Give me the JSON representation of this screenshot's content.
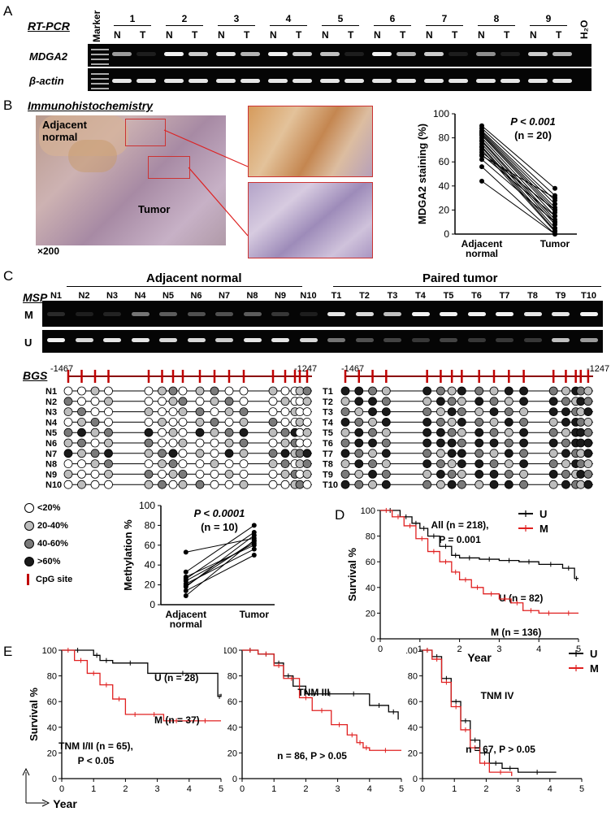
{
  "panels": {
    "A": "A",
    "B": "B",
    "C": "C",
    "D": "D",
    "E": "E"
  },
  "panelA": {
    "method": "RT-PCR",
    "marker": "Marker",
    "lanes": [
      "1",
      "2",
      "3",
      "4",
      "5",
      "6",
      "7",
      "8",
      "9"
    ],
    "n_label": "N",
    "t_label": "T",
    "h2o": "H₂O",
    "gene": "MDGA2",
    "control": "β-actin",
    "mdga2_intensity": [
      [
        0.6,
        0.1
      ],
      [
        0.95,
        0.8
      ],
      [
        0.9,
        0.7
      ],
      [
        0.95,
        0.8
      ],
      [
        0.75,
        0.1
      ],
      [
        0.95,
        0.7
      ],
      [
        0.8,
        0.1
      ],
      [
        0.55,
        0.1
      ],
      [
        0.8,
        0.7
      ]
    ]
  },
  "panelB": {
    "method": "Immunohistochemistry",
    "adjacent": "Adjacent\nnormal",
    "tumor": "Tumor",
    "mag": "×200"
  },
  "panelC": {
    "msp_label": "MSP",
    "adjacent_header": "Adjacent normal",
    "paired_header": "Paired tumor",
    "normal_lanes": [
      "N1",
      "N2",
      "N3",
      "N4",
      "N5",
      "N6",
      "N7",
      "N8",
      "N9",
      "N10"
    ],
    "tumor_lanes": [
      "T1",
      "T2",
      "T3",
      "T4",
      "T5",
      "T6",
      "T7",
      "T8",
      "T9",
      "T10"
    ],
    "row_m": "M",
    "row_u": "U",
    "bgs_label": "BGS",
    "pos_start": "-1467",
    "pos_end": "-1247",
    "legend": [
      "<20%",
      "20-40%",
      "40-60%",
      ">60%",
      "CpG site"
    ]
  },
  "chart_data": [
    {
      "id": "B-ihc",
      "type": "line",
      "ylabel": "MDGA2 staining (%)",
      "categories": [
        "Adjacent normal",
        "Tumor"
      ],
      "ylim": [
        0,
        100
      ],
      "yticks": [
        0,
        20,
        40,
        60,
        80,
        100
      ],
      "annotation": [
        "P < 0.001",
        "(n = 20)"
      ],
      "pairs": [
        [
          90,
          38
        ],
        [
          88,
          32
        ],
        [
          86,
          28
        ],
        [
          85,
          25
        ],
        [
          84,
          22
        ],
        [
          83,
          20
        ],
        [
          82,
          18
        ],
        [
          80,
          15
        ],
        [
          78,
          12
        ],
        [
          77,
          10
        ],
        [
          75,
          8
        ],
        [
          73,
          5
        ],
        [
          72,
          3
        ],
        [
          70,
          2
        ],
        [
          68,
          20
        ],
        [
          66,
          15
        ],
        [
          65,
          30
        ],
        [
          62,
          10
        ],
        [
          56,
          0
        ],
        [
          44,
          0
        ]
      ]
    },
    {
      "id": "C-methylation",
      "type": "line",
      "ylabel": "Methylation %",
      "categories": [
        "Adjacent normal",
        "Tumor"
      ],
      "ylim": [
        0,
        100
      ],
      "yticks": [
        0,
        20,
        40,
        60,
        80,
        100
      ],
      "annotation": [
        "P < 0.0001",
        "(n = 10)"
      ],
      "pairs": [
        [
          53,
          67
        ],
        [
          33,
          80
        ],
        [
          28,
          60
        ],
        [
          26,
          73
        ],
        [
          24,
          62
        ],
        [
          21,
          56
        ],
        [
          19,
          64
        ],
        [
          18,
          70
        ],
        [
          14,
          50
        ],
        [
          9,
          65
        ]
      ]
    },
    {
      "id": "D-survival",
      "type": "line",
      "xlabel": "Year",
      "ylabel": "Survival %",
      "xlim": [
        0,
        5
      ],
      "ylim": [
        0,
        100
      ],
      "xticks": [
        0,
        1,
        2,
        3,
        4,
        5
      ],
      "yticks": [
        0,
        20,
        40,
        60,
        80,
        100
      ],
      "annotation": [
        "All (n = 218),",
        "P = 0.001"
      ],
      "series": [
        {
          "name": "U",
          "color": "#000000",
          "label": "U (n = 82)",
          "x": [
            0,
            0.5,
            0.8,
            1.0,
            1.2,
            1.5,
            1.8,
            2.0,
            2.5,
            3.0,
            3.5,
            4.0,
            4.6,
            4.9,
            5.0
          ],
          "y": [
            100,
            95,
            90,
            86,
            80,
            72,
            65,
            63,
            62,
            61,
            60,
            58,
            55,
            47,
            47
          ]
        },
        {
          "name": "M",
          "color": "#e02020",
          "label": "M (n = 136)",
          "x": [
            0,
            0.3,
            0.6,
            0.9,
            1.2,
            1.5,
            1.8,
            2.0,
            2.3,
            2.6,
            3.0,
            3.3,
            3.6,
            4.0,
            4.5,
            5.0
          ],
          "y": [
            100,
            95,
            88,
            78,
            68,
            60,
            52,
            46,
            40,
            35,
            31,
            28,
            22,
            20,
            20,
            20
          ]
        }
      ]
    },
    {
      "id": "E-tnm12",
      "type": "line",
      "xlabel": "Year",
      "ylabel": "Survival %",
      "xlim": [
        0,
        5
      ],
      "ylim": [
        0,
        100
      ],
      "xticks": [
        0,
        1,
        2,
        3,
        4,
        5
      ],
      "yticks": [
        0,
        20,
        40,
        60,
        80,
        100
      ],
      "annotation": [
        "TNM I/II (n = 65),",
        "P < 0.05"
      ],
      "series": [
        {
          "name": "U",
          "color": "#000000",
          "label": "U (n = 28)",
          "x": [
            0,
            1.0,
            1.2,
            1.6,
            2.7,
            4.9,
            5.0
          ],
          "y": [
            100,
            96,
            92,
            90,
            82,
            64,
            66
          ]
        },
        {
          "name": "M",
          "color": "#e02020",
          "label": "M (n = 37)",
          "x": [
            0,
            0.4,
            0.8,
            1.2,
            1.6,
            2.0,
            2.6,
            3.2,
            4.0,
            5.0
          ],
          "y": [
            100,
            92,
            82,
            73,
            62,
            50,
            50,
            45,
            45,
            45
          ]
        }
      ]
    },
    {
      "id": "E-tnm3",
      "type": "line",
      "xlabel": "Year",
      "xlim": [
        0,
        5
      ],
      "ylim": [
        0,
        100
      ],
      "xticks": [
        0,
        1,
        2,
        3,
        4,
        5
      ],
      "yticks": [
        0,
        20,
        40,
        60,
        80,
        100
      ],
      "annotation": [
        "TNM III",
        "n = 86, P > 0.05"
      ],
      "series": [
        {
          "name": "U",
          "color": "#000000",
          "x": [
            0,
            0.5,
            1.0,
            1.3,
            1.6,
            2.0,
            2.5,
            3.0,
            4.0,
            4.6,
            4.9
          ],
          "y": [
            100,
            97,
            90,
            80,
            72,
            66,
            66,
            66,
            57,
            52,
            46
          ]
        },
        {
          "name": "M",
          "color": "#e02020",
          "x": [
            0,
            0.5,
            1.0,
            1.3,
            1.8,
            2.2,
            2.8,
            3.3,
            3.6,
            3.8,
            4.0,
            5.0
          ],
          "y": [
            100,
            97,
            88,
            78,
            63,
            53,
            42,
            34,
            28,
            24,
            22,
            22
          ]
        }
      ]
    },
    {
      "id": "E-tnm4",
      "type": "line",
      "xlabel": "Year",
      "xlim": [
        0,
        5
      ],
      "ylim": [
        0,
        100
      ],
      "xticks": [
        0,
        1,
        2,
        3,
        4,
        5
      ],
      "yticks": [
        0,
        20,
        40,
        60,
        80,
        100
      ],
      "annotation": [
        "TNM IV",
        "n = 67, P > 0.05"
      ],
      "legend": [
        "U",
        "M"
      ],
      "series": [
        {
          "name": "U",
          "color": "#000000",
          "x": [
            0,
            0.3,
            0.6,
            0.9,
            1.2,
            1.5,
            1.8,
            2.1,
            2.5,
            3.0,
            4.2
          ],
          "y": [
            100,
            95,
            78,
            60,
            45,
            30,
            20,
            12,
            8,
            5,
            5
          ]
        },
        {
          "name": "M",
          "color": "#e02020",
          "x": [
            0,
            0.3,
            0.6,
            0.9,
            1.2,
            1.5,
            1.8,
            2.1,
            2.8
          ],
          "y": [
            100,
            93,
            75,
            56,
            38,
            24,
            12,
            5,
            2
          ]
        }
      ]
    }
  ]
}
